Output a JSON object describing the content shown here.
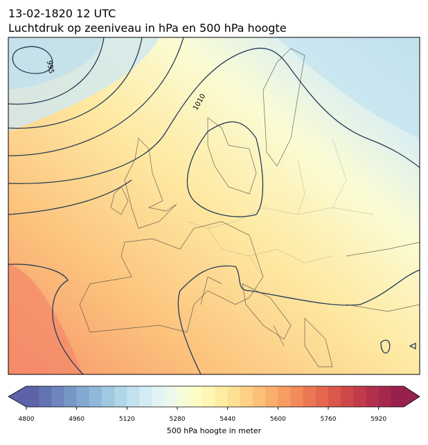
{
  "title": "13-02-1820 12 UTC",
  "subtitle": "Luchtdruk op zeeniveau in hPa en 500 hPa hoogte",
  "contour_labels": [
    "995",
    "1010"
  ],
  "colorbar": {
    "label": "500 hPa hoogte in meter",
    "lim": [
      4800,
      6000
    ],
    "ticks": [
      4800,
      4960,
      5120,
      5280,
      5440,
      5600,
      5760,
      5920
    ],
    "colors": [
      "#5c63a9",
      "#6473b2",
      "#6d84bc",
      "#7797c6",
      "#83a9d0",
      "#90b9d9",
      "#9fc8e1",
      "#b0d6e8",
      "#c2e2ef",
      "#d4ecf4",
      "#e3f4f5",
      "#eef8ea",
      "#f7fbd8",
      "#fdfcc4",
      "#fff6b3",
      "#ffeca3",
      "#fee093",
      "#fdd185",
      "#fcc078",
      "#faae6c",
      "#f79c62",
      "#f38a5a",
      "#ec7853",
      "#e4674e",
      "#da574b",
      "#ce4849",
      "#c13b4a",
      "#b3304c",
      "#a5284d",
      "#97204e"
    ]
  }
}
